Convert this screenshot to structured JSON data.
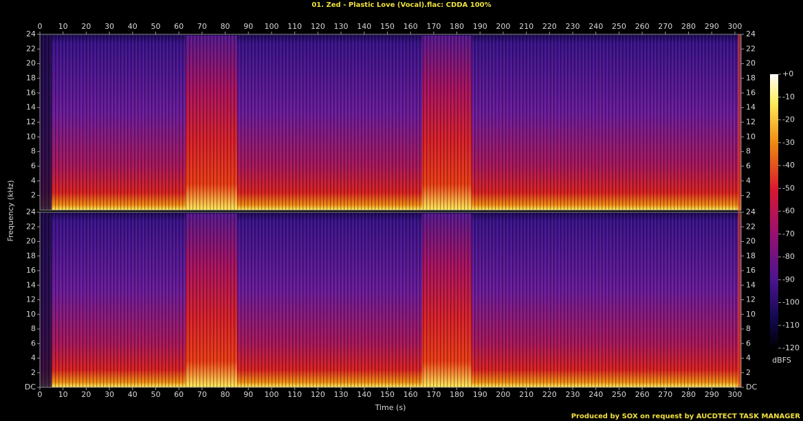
{
  "title": "01. Zed - Plastic Love (Vocal).flac: CDDA 100%",
  "footer": "Produced by SOX on request by AUCDTECT TASK MANAGER",
  "ylabel": "Frequency (kHz)",
  "colorbar": {
    "label": "dBFS",
    "lim": [
      -120,
      0
    ],
    "ticks": [
      {
        "value": 0,
        "label": "+0"
      },
      -10,
      -20,
      -30,
      -40,
      -50,
      -60,
      -70,
      -80,
      -90,
      -100,
      -110,
      -120
    ]
  },
  "chart_data": [
    {
      "type": "spectrogram",
      "xaxis": "top",
      "xlim": [
        0,
        302.7
      ],
      "xticks": [
        0,
        10,
        20,
        30,
        40,
        50,
        60,
        70,
        80,
        90,
        100,
        110,
        120,
        130,
        140,
        150,
        160,
        170,
        180,
        190,
        200,
        210,
        220,
        230,
        240,
        250,
        260,
        270,
        280,
        290,
        300
      ],
      "ylim": [
        0,
        24
      ],
      "yticks": [
        2,
        4,
        6,
        8,
        10,
        12,
        14,
        16,
        18,
        20,
        22,
        24
      ]
    },
    {
      "type": "spectrogram",
      "xaxis": "bottom",
      "xlabel": "Time (s)",
      "xlim": [
        0,
        302.7
      ],
      "xticks": [
        0,
        10,
        20,
        30,
        40,
        50,
        60,
        70,
        80,
        90,
        100,
        110,
        120,
        130,
        140,
        150,
        160,
        170,
        180,
        190,
        200,
        210,
        220,
        230,
        240,
        250,
        260,
        270,
        280,
        290,
        300
      ],
      "ylim": [
        0,
        24
      ],
      "yticks": [
        {
          "value": 0,
          "label": "DC"
        },
        2,
        4,
        6,
        8,
        10,
        12,
        14,
        16,
        18,
        20,
        22,
        24
      ]
    }
  ]
}
